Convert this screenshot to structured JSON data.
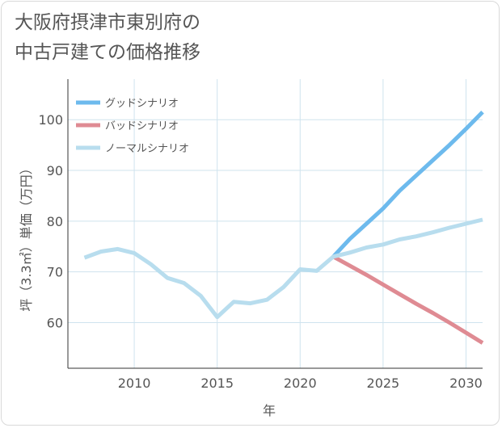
{
  "title": {
    "line1": "大阪府摂津市東別府の",
    "line2": "中古戸建ての価格推移"
  },
  "chart_data": {
    "type": "line",
    "xlabel": "年",
    "ylabel": "坪（3.3㎡）単価（万円）",
    "xlim": [
      2006,
      2031
    ],
    "ylim": [
      51,
      108
    ],
    "xticks": [
      2010,
      2015,
      2020,
      2025,
      2030
    ],
    "yticks": [
      60,
      70,
      80,
      90,
      100
    ],
    "grid": true,
    "legend_position": "top-left",
    "series": [
      {
        "name": "グッドシナリオ",
        "color": "#6dbaed",
        "x": [
          2022,
          2023,
          2024,
          2025,
          2026,
          2027,
          2028,
          2029,
          2030,
          2031
        ],
        "y": [
          73,
          76.5,
          79.5,
          82.5,
          86,
          89,
          92,
          95,
          98.2,
          101.5
        ]
      },
      {
        "name": "バッドシナリオ",
        "color": "#df8b93",
        "x": [
          2022,
          2023,
          2024,
          2025,
          2026,
          2027,
          2028,
          2029,
          2030,
          2031
        ],
        "y": [
          73,
          71.2,
          69.4,
          67.5,
          65.6,
          63.7,
          61.9,
          60,
          58,
          56
        ]
      },
      {
        "name": "ノーマルシナリオ",
        "color": "#b8ddee",
        "x": [
          2007,
          2008,
          2009,
          2010,
          2011,
          2012,
          2013,
          2014,
          2015,
          2016,
          2017,
          2018,
          2019,
          2020,
          2021,
          2022,
          2023,
          2024,
          2025,
          2026,
          2027,
          2028,
          2029,
          2030,
          2031
        ],
        "y": [
          72.8,
          74,
          74.5,
          73.7,
          71.5,
          68.8,
          67.8,
          65.3,
          61.1,
          64.1,
          63.8,
          64.5,
          67,
          70.5,
          70.2,
          73,
          73.8,
          74.8,
          75.4,
          76.4,
          77,
          77.8,
          78.7,
          79.5,
          80.3
        ]
      }
    ]
  }
}
